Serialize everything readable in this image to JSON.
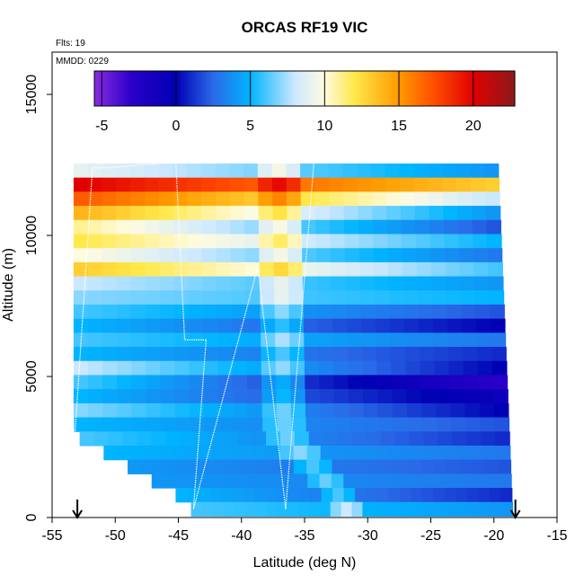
{
  "chart_data": {
    "type": "heatmap",
    "title": "ORCAS RF19 VIC",
    "xlabel": "Latitude (deg N)",
    "ylabel": "Altitude (m)",
    "xlim": [
      -55,
      -15
    ],
    "ylim": [
      0,
      16500
    ],
    "x_ticks": [
      -55,
      -50,
      -45,
      -40,
      -35,
      -30,
      -25,
      -20,
      -15
    ],
    "y_ticks": [
      0,
      5000,
      10000,
      15000
    ],
    "annotations": {
      "flights": "Flts: 19",
      "mmdd": "MMDD: 0229"
    },
    "colorbar": {
      "min": -5.5,
      "max": 22.8,
      "ticks": [
        -5,
        0,
        5,
        10,
        15,
        20
      ],
      "colors": [
        [
          -5.5,
          "#8a2be2"
        ],
        [
          -3,
          "#2a00c8"
        ],
        [
          0,
          "#0000b4"
        ],
        [
          2.5,
          "#2a6ae8"
        ],
        [
          5,
          "#00b4ff"
        ],
        [
          8,
          "#cce8ff"
        ],
        [
          10,
          "#fffbe0"
        ],
        [
          12,
          "#ffe84a"
        ],
        [
          15,
          "#ff9a00"
        ],
        [
          17.5,
          "#ff4a00"
        ],
        [
          20,
          "#e00000"
        ],
        [
          22.8,
          "#8b1a1a"
        ]
      ]
    },
    "profile_rows": [
      {
        "alt": 12300,
        "west": 9,
        "east": 4
      },
      {
        "alt": 11800,
        "west": 20,
        "east": 13
      },
      {
        "alt": 11300,
        "west": 17,
        "east": 8
      },
      {
        "alt": 10800,
        "west": 14,
        "east": 4
      },
      {
        "alt": 10300,
        "west": 11,
        "east": 2
      },
      {
        "alt": 9800,
        "west": 12,
        "east": 5
      },
      {
        "alt": 9300,
        "west": 10,
        "east": 3
      },
      {
        "alt": 8800,
        "west": 13,
        "east": 6
      },
      {
        "alt": 8300,
        "west": 8,
        "east": 4
      },
      {
        "alt": 7800,
        "west": 7,
        "east": 5
      },
      {
        "alt": 7300,
        "west": 6,
        "east": 2
      },
      {
        "alt": 6800,
        "west": 5,
        "east": 0
      },
      {
        "alt": 6300,
        "west": 6,
        "east": 3
      },
      {
        "alt": 5800,
        "west": 5,
        "east": 1
      },
      {
        "alt": 5300,
        "west": 8,
        "east": 0
      },
      {
        "alt": 4800,
        "west": 6,
        "east": -3
      },
      {
        "alt": 4300,
        "west": 5,
        "east": -1
      },
      {
        "alt": 3800,
        "west": 7,
        "east": 0
      },
      {
        "alt": 3300,
        "west": 5,
        "east": 2
      },
      {
        "alt": 2800,
        "west": 6,
        "east": 1
      },
      {
        "alt": 2300,
        "west": 5,
        "east": 3
      },
      {
        "alt": 1800,
        "west": 4,
        "east": 2
      },
      {
        "alt": 1300,
        "west": 4,
        "east": 3
      },
      {
        "alt": 800,
        "west": 5,
        "east": 1
      },
      {
        "alt": 300,
        "west": 6,
        "east": 4
      }
    ],
    "flight_track": [
      [
        -53.2,
        2900
      ],
      [
        -51.8,
        12400
      ],
      [
        -50.5,
        12400
      ],
      [
        -45.2,
        12600
      ],
      [
        -44.5,
        6300
      ],
      [
        -42.8,
        6300
      ],
      [
        -43.8,
        300
      ],
      [
        -38.7,
        8900
      ],
      [
        -36.5,
        300
      ],
      [
        -34.2,
        12900
      ],
      [
        -19.6,
        12900
      ],
      [
        -18.5,
        2900
      ],
      [
        -18.2,
        300
      ]
    ],
    "markers": [
      {
        "x": -53.0,
        "label": ""
      },
      {
        "x": -18.3,
        "label": ""
      }
    ]
  }
}
